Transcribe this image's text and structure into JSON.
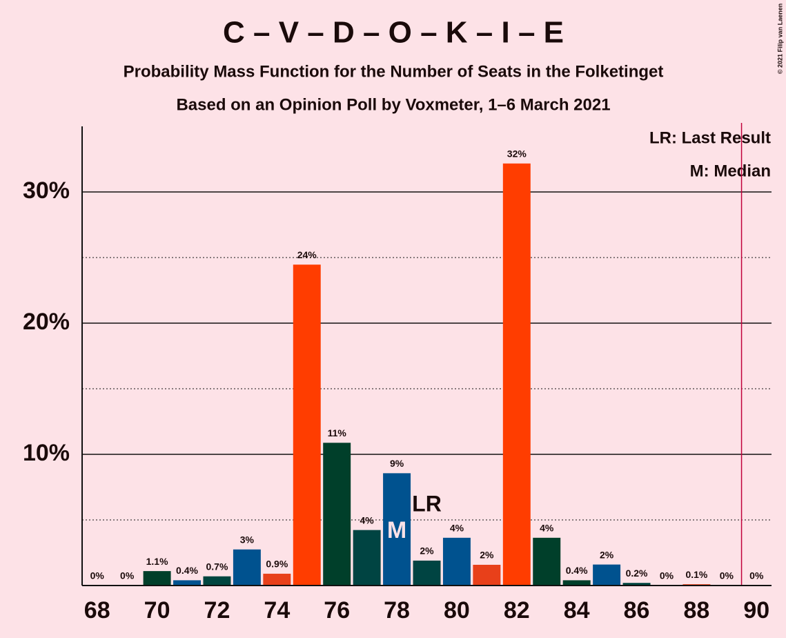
{
  "chart_data": {
    "type": "bar",
    "title": "C – V – D – O – K – I – E",
    "subtitle": "Probability Mass Function for the Number of Seats in the Folketinget",
    "subtitle2": "Based on an Opinion Poll by Voxmeter, 1–6 March 2021",
    "copyright": "© 2021 Filip van Laenen",
    "legend": [
      "LR: Last Result",
      "M: Median"
    ],
    "x": [
      68,
      69,
      70,
      71,
      72,
      73,
      74,
      75,
      76,
      77,
      78,
      79,
      80,
      81,
      82,
      83,
      84,
      85,
      86,
      87,
      88,
      89,
      90
    ],
    "values": [
      0,
      0,
      1.1,
      0.4,
      0.7,
      2.75,
      0.9,
      24.46,
      10.88,
      4.23,
      8.56,
      1.9,
      3.64,
      1.58,
      32.17,
      3.64,
      0.4,
      1.6,
      0.2,
      0,
      0.1,
      0,
      0
    ],
    "value_labels": [
      "0%",
      "0%",
      "1.1%",
      "0.4%",
      "0.7%",
      "3%",
      "0.9%",
      "24%",
      "11%",
      "4%",
      "9%",
      "2%",
      "4%",
      "2%",
      "32%",
      "4%",
      "0.4%",
      "2%",
      "0.2%",
      "0%",
      "0.1%",
      "0%",
      "0%"
    ],
    "colors": [
      "#00528f",
      "#00528f",
      "#003f2a",
      "#00528f",
      "#00453f",
      "#00528f",
      "#e8401a",
      "#ff3d00",
      "#003f2a",
      "#004442",
      "#00528f",
      "#004442",
      "#00528f",
      "#e8401a",
      "#ff3d00",
      "#003f2a",
      "#003f2a",
      "#00528f",
      "#00453f",
      "#00528f",
      "#e8401a",
      "#00528f",
      "#00528f"
    ],
    "xlim": [
      67.5,
      90.5
    ],
    "ylim": [
      0,
      35
    ],
    "xticks": [
      68,
      70,
      72,
      74,
      76,
      78,
      80,
      82,
      84,
      86,
      88,
      90
    ],
    "yticks": [
      {
        "value": 10,
        "label": "10%"
      },
      {
        "value": 20,
        "label": "20%"
      },
      {
        "value": 30,
        "label": "30%"
      }
    ],
    "minor_yticks": [
      5,
      15,
      25
    ],
    "last_result": {
      "x": 79,
      "label": "LR"
    },
    "median": {
      "x": 78,
      "label": "M"
    },
    "majority_x": 89.5
  }
}
